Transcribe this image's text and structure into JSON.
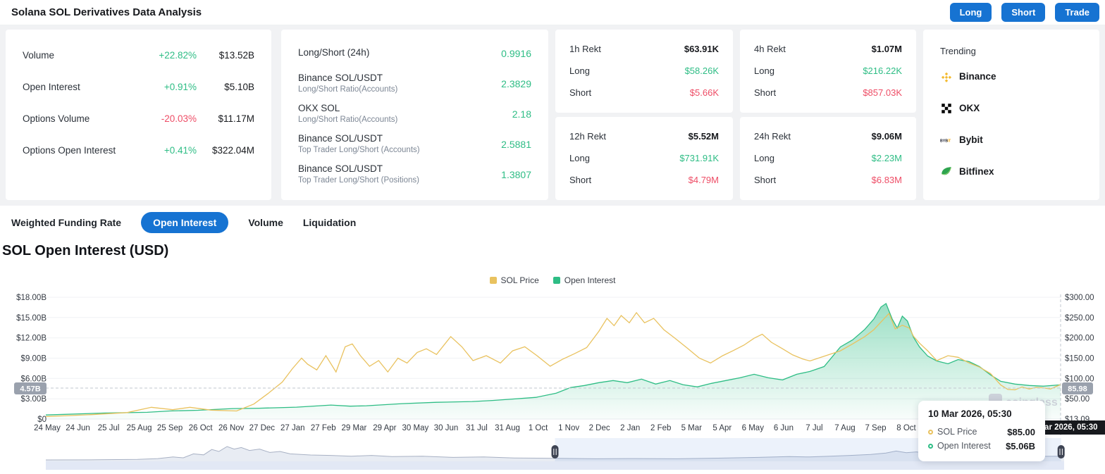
{
  "header": {
    "title": "Solana SOL Derivatives Data Analysis",
    "buttons": [
      "Long",
      "Short",
      "Trade"
    ]
  },
  "colors": {
    "accent_blue": "#1673d2",
    "positive_green": "#2ebd85",
    "negative_red": "#ee4d66",
    "price_yellow": "#e9c25f",
    "oi_green": "#2ebd85"
  },
  "stats": {
    "rows": [
      {
        "label": "Volume",
        "change": "+22.82%",
        "dir": "up",
        "value": "$13.52B"
      },
      {
        "label": "Open Interest",
        "change": "+0.91%",
        "dir": "up",
        "value": "$5.10B"
      },
      {
        "label": "Options Volume",
        "change": "-20.03%",
        "dir": "down",
        "value": "$11.17M"
      },
      {
        "label": "Options Open Interest",
        "change": "+0.41%",
        "dir": "up",
        "value": "$322.04M"
      }
    ]
  },
  "ratios": {
    "rows": [
      {
        "label": "Long/Short (24h)",
        "sub": "",
        "value": "0.9916"
      },
      {
        "label": "Binance SOL/USDT",
        "sub": "Long/Short Ratio(Accounts)",
        "value": "2.3829"
      },
      {
        "label": "OKX SOL",
        "sub": "Long/Short Ratio(Accounts)",
        "value": "2.18"
      },
      {
        "label": "Binance SOL/USDT",
        "sub": "Top Trader Long/Short (Accounts)",
        "value": "2.5881"
      },
      {
        "label": "Binance SOL/USDT",
        "sub": "Top Trader Long/Short (Positions)",
        "value": "1.3807"
      }
    ]
  },
  "rekt": {
    "long_label": "Long",
    "short_label": "Short",
    "cards": [
      {
        "title": "1h Rekt",
        "total": "$63.91K",
        "long": "$58.26K",
        "short": "$5.66K"
      },
      {
        "title": "4h Rekt",
        "total": "$1.07M",
        "long": "$216.22K",
        "short": "$857.03K"
      },
      {
        "title": "12h Rekt",
        "total": "$5.52M",
        "long": "$731.91K",
        "short": "$4.79M"
      },
      {
        "title": "24h Rekt",
        "total": "$9.06M",
        "long": "$2.23M",
        "short": "$6.83M"
      }
    ]
  },
  "trending": {
    "title": "Trending",
    "items": [
      {
        "name": "Binance",
        "icon": "binance-icon",
        "color": "#F3BA2F"
      },
      {
        "name": "OKX",
        "icon": "okx-icon",
        "color": "#000000"
      },
      {
        "name": "Bybit",
        "icon": "bybit-icon",
        "color": "#15192a"
      },
      {
        "name": "Bitfinex",
        "icon": "bitfinex-icon",
        "color": "#2ea44f"
      }
    ]
  },
  "tabs": {
    "items": [
      "Weighted Funding Rate",
      "Open Interest",
      "Volume",
      "Liquidation"
    ],
    "active": "Open Interest"
  },
  "section_title": "SOL Open Interest (USD)",
  "chart_data": {
    "type": "line",
    "title": "SOL Open Interest (USD)",
    "legend": [
      {
        "label": "SOL Price",
        "color": "#e9c25f"
      },
      {
        "label": "Open Interest",
        "color": "#2ebd85"
      }
    ],
    "left_axis": {
      "unit": "USD",
      "ticks": [
        "$18.00B",
        "$15.00B",
        "$12.00B",
        "$9.00B",
        "$6.00B",
        "$3.00B",
        "$0"
      ],
      "max": 18,
      "min": 0
    },
    "right_axis": {
      "unit": "USD",
      "ticks": [
        "$300.00",
        "$250.00",
        "$200.00",
        "$150.00",
        "$100.00",
        "$50.00",
        "$13.09"
      ],
      "max": 300,
      "min": 0
    },
    "x_ticks": [
      "24 May",
      "24 Jun",
      "25 Jul",
      "25 Aug",
      "25 Sep",
      "26 Oct",
      "26 Nov",
      "27 Dec",
      "27 Jan",
      "27 Feb",
      "29 Mar",
      "29 Apr",
      "30 May",
      "30 Jun",
      "31 Jul",
      "31 Aug",
      "1 Oct",
      "1 Nov",
      "2 Dec",
      "2 Jan",
      "2 Feb",
      "5 Mar",
      "5 Apr",
      "6 May",
      "6 Jun",
      "7 Jul",
      "7 Aug",
      "7 Sep",
      "8 Oct"
    ],
    "grid": true,
    "legend_position": "top-center",
    "series": {
      "sol_price": {
        "name": "SOL Price",
        "axis": "right",
        "unit": "USD",
        "points": [
          [
            0,
            6
          ],
          [
            0.045,
            11
          ],
          [
            0.08,
            16
          ],
          [
            0.104,
            29
          ],
          [
            0.125,
            23
          ],
          [
            0.142,
            29
          ],
          [
            0.163,
            22
          ],
          [
            0.188,
            20
          ],
          [
            0.205,
            37
          ],
          [
            0.219,
            63
          ],
          [
            0.233,
            91
          ],
          [
            0.243,
            124
          ],
          [
            0.252,
            150
          ],
          [
            0.258,
            135
          ],
          [
            0.267,
            121
          ],
          [
            0.276,
            156
          ],
          [
            0.286,
            116
          ],
          [
            0.295,
            178
          ],
          [
            0.302,
            185
          ],
          [
            0.31,
            156
          ],
          [
            0.319,
            130
          ],
          [
            0.328,
            144
          ],
          [
            0.337,
            116
          ],
          [
            0.347,
            150
          ],
          [
            0.356,
            138
          ],
          [
            0.366,
            164
          ],
          [
            0.375,
            173
          ],
          [
            0.385,
            159
          ],
          [
            0.399,
            203
          ],
          [
            0.41,
            178
          ],
          [
            0.421,
            144
          ],
          [
            0.434,
            156
          ],
          [
            0.448,
            138
          ],
          [
            0.46,
            168
          ],
          [
            0.472,
            178
          ],
          [
            0.484,
            156
          ],
          [
            0.497,
            130
          ],
          [
            0.509,
            147
          ],
          [
            0.521,
            161
          ],
          [
            0.533,
            176
          ],
          [
            0.545,
            216
          ],
          [
            0.553,
            248
          ],
          [
            0.56,
            230
          ],
          [
            0.567,
            255
          ],
          [
            0.575,
            237
          ],
          [
            0.582,
            262
          ],
          [
            0.59,
            237
          ],
          [
            0.599,
            248
          ],
          [
            0.609,
            220
          ],
          [
            0.62,
            199
          ],
          [
            0.632,
            175
          ],
          [
            0.644,
            150
          ],
          [
            0.655,
            138
          ],
          [
            0.667,
            156
          ],
          [
            0.677,
            168
          ],
          [
            0.688,
            182
          ],
          [
            0.698,
            199
          ],
          [
            0.706,
            209
          ],
          [
            0.715,
            189
          ],
          [
            0.726,
            173
          ],
          [
            0.736,
            158
          ],
          [
            0.746,
            148
          ],
          [
            0.753,
            143
          ],
          [
            0.783,
            168
          ],
          [
            0.795,
            185
          ],
          [
            0.807,
            203
          ],
          [
            0.816,
            220
          ],
          [
            0.823,
            239
          ],
          [
            0.831,
            260
          ],
          [
            0.837,
            222
          ],
          [
            0.844,
            231
          ],
          [
            0.851,
            224
          ],
          [
            0.855,
            204
          ],
          [
            0.861,
            187
          ],
          [
            0.869,
            168
          ],
          [
            0.878,
            144
          ],
          [
            0.889,
            156
          ],
          [
            0.899,
            152
          ],
          [
            0.91,
            138
          ],
          [
            0.92,
            128
          ],
          [
            0.931,
            112
          ],
          [
            0.941,
            84
          ],
          [
            0.948,
            73
          ],
          [
            0.955,
            72
          ],
          [
            0.962,
            79
          ],
          [
            0.969,
            74
          ],
          [
            0.976,
            78
          ],
          [
            0.983,
            77
          ],
          [
            0.99,
            74
          ],
          [
            1,
            85
          ]
        ]
      },
      "open_interest": {
        "name": "Open Interest",
        "axis": "left",
        "unit": "USD B",
        "points": [
          [
            0,
            0.6
          ],
          [
            0.059,
            0.9
          ],
          [
            0.1,
            1.0
          ],
          [
            0.122,
            1.2
          ],
          [
            0.15,
            1.3
          ],
          [
            0.184,
            1.55
          ],
          [
            0.21,
            1.6
          ],
          [
            0.247,
            1.76
          ],
          [
            0.281,
            2.07
          ],
          [
            0.3,
            1.9
          ],
          [
            0.316,
            1.97
          ],
          [
            0.351,
            2.28
          ],
          [
            0.385,
            2.48
          ],
          [
            0.42,
            2.59
          ],
          [
            0.44,
            2.75
          ],
          [
            0.455,
            2.9
          ],
          [
            0.483,
            3.2
          ],
          [
            0.503,
            3.83
          ],
          [
            0.517,
            4.65
          ],
          [
            0.531,
            4.96
          ],
          [
            0.545,
            5.38
          ],
          [
            0.559,
            5.69
          ],
          [
            0.573,
            5.38
          ],
          [
            0.587,
            5.9
          ],
          [
            0.601,
            5.17
          ],
          [
            0.615,
            5.69
          ],
          [
            0.628,
            5.07
          ],
          [
            0.642,
            4.76
          ],
          [
            0.656,
            5.27
          ],
          [
            0.67,
            5.69
          ],
          [
            0.684,
            6.1
          ],
          [
            0.698,
            6.62
          ],
          [
            0.712,
            6.1
          ],
          [
            0.726,
            5.79
          ],
          [
            0.74,
            6.62
          ],
          [
            0.753,
            7.03
          ],
          [
            0.767,
            7.76
          ],
          [
            0.783,
            10.65
          ],
          [
            0.795,
            11.69
          ],
          [
            0.807,
            13.24
          ],
          [
            0.816,
            14.79
          ],
          [
            0.823,
            16.55
          ],
          [
            0.828,
            17.06
          ],
          [
            0.834,
            14.79
          ],
          [
            0.839,
            13.44
          ],
          [
            0.844,
            15.2
          ],
          [
            0.849,
            14.48
          ],
          [
            0.855,
            12.1
          ],
          [
            0.861,
            10.65
          ],
          [
            0.869,
            9.31
          ],
          [
            0.878,
            8.58
          ],
          [
            0.889,
            8.17
          ],
          [
            0.899,
            8.79
          ],
          [
            0.91,
            8.48
          ],
          [
            0.92,
            7.76
          ],
          [
            0.931,
            6.52
          ],
          [
            0.941,
            5.58
          ],
          [
            0.955,
            5.17
          ],
          [
            0.969,
            4.96
          ],
          [
            0.983,
            4.86
          ],
          [
            1,
            5.06
          ]
        ]
      }
    },
    "crosshair": {
      "x_frac": 1.0,
      "left_badge": "4.57B",
      "right_badge": "85.98",
      "date_badge": "10 Mar 2026, 05:30"
    },
    "tooltip": {
      "title": "10 Mar 2026, 05:30",
      "rows": [
        {
          "label": "SOL Price",
          "value": "$85.00",
          "color": "#e9c25f"
        },
        {
          "label": "Open Interest",
          "value": "$5.06B",
          "color": "#2ebd85"
        }
      ]
    },
    "navigator": {
      "points": [
        [
          0,
          0.07
        ],
        [
          0.05,
          0.08
        ],
        [
          0.09,
          0.1
        ],
        [
          0.11,
          0.14
        ],
        [
          0.125,
          0.22
        ],
        [
          0.135,
          0.18
        ],
        [
          0.145,
          0.38
        ],
        [
          0.155,
          0.33
        ],
        [
          0.163,
          0.6
        ],
        [
          0.17,
          0.5
        ],
        [
          0.178,
          0.75
        ],
        [
          0.185,
          0.62
        ],
        [
          0.192,
          0.7
        ],
        [
          0.2,
          0.55
        ],
        [
          0.21,
          0.62
        ],
        [
          0.22,
          0.45
        ],
        [
          0.23,
          0.5
        ],
        [
          0.24,
          0.38
        ],
        [
          0.26,
          0.32
        ],
        [
          0.28,
          0.3
        ],
        [
          0.3,
          0.26
        ],
        [
          0.32,
          0.3
        ],
        [
          0.34,
          0.24
        ],
        [
          0.37,
          0.26
        ],
        [
          0.4,
          0.2
        ],
        [
          0.43,
          0.22
        ],
        [
          0.46,
          0.17
        ],
        [
          0.5,
          0.15
        ],
        [
          0.54,
          0.13
        ],
        [
          0.58,
          0.14
        ],
        [
          0.62,
          0.13
        ],
        [
          0.66,
          0.16
        ],
        [
          0.7,
          0.2
        ],
        [
          0.73,
          0.24
        ],
        [
          0.75,
          0.22
        ],
        [
          0.77,
          0.26
        ],
        [
          0.79,
          0.3
        ],
        [
          0.81,
          0.35
        ],
        [
          0.825,
          0.42
        ],
        [
          0.835,
          0.52
        ],
        [
          0.845,
          0.44
        ],
        [
          0.855,
          0.48
        ],
        [
          0.865,
          0.4
        ],
        [
          0.88,
          0.34
        ],
        [
          0.9,
          0.28
        ],
        [
          0.92,
          0.25
        ],
        [
          0.95,
          0.24
        ],
        [
          0.97,
          0.25
        ],
        [
          1,
          0.26
        ]
      ],
      "selection_start_frac": 0.5,
      "selection_end_frac": 0.997
    },
    "watermark": "coinglass"
  }
}
